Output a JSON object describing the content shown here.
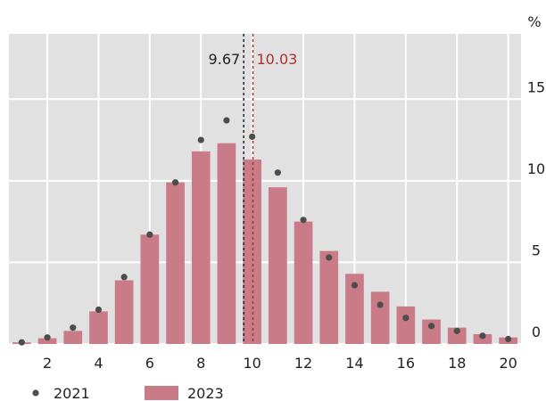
{
  "chart_data": {
    "type": "bar",
    "y_unit": "%",
    "x": [
      1,
      2,
      3,
      4,
      5,
      6,
      7,
      8,
      9,
      10,
      11,
      12,
      13,
      14,
      15,
      16,
      17,
      18,
      19,
      20
    ],
    "x_ticks": [
      "2",
      "4",
      "6",
      "8",
      "10",
      "12",
      "14",
      "16",
      "18",
      "20"
    ],
    "y_ticks": [
      "0",
      "5",
      "10",
      "15"
    ],
    "ylim": [
      0,
      19
    ],
    "xlim": [
      0.5,
      20.5
    ],
    "grid": true,
    "legend_position": "bottom-left",
    "series": [
      {
        "name": "2021",
        "kind": "points",
        "color": "#4d4d4d",
        "values": [
          0.1,
          0.4,
          1.0,
          2.1,
          4.1,
          6.7,
          9.9,
          12.5,
          13.7,
          12.7,
          10.5,
          7.6,
          5.3,
          3.6,
          2.4,
          1.6,
          1.1,
          0.8,
          0.5,
          0.3
        ]
      },
      {
        "name": "2023",
        "kind": "bars",
        "color": "#c97b87",
        "values": [
          0.1,
          0.35,
          0.8,
          2.0,
          3.9,
          6.7,
          9.9,
          11.8,
          12.3,
          11.3,
          9.6,
          7.5,
          5.7,
          4.3,
          3.2,
          2.3,
          1.5,
          1.0,
          0.6,
          0.4
        ]
      }
    ],
    "reference_lines": [
      {
        "value": 9.67,
        "label": "9.67",
        "color": "#222222"
      },
      {
        "value": 10.03,
        "label": "10.03",
        "color": "#b03030"
      }
    ]
  }
}
